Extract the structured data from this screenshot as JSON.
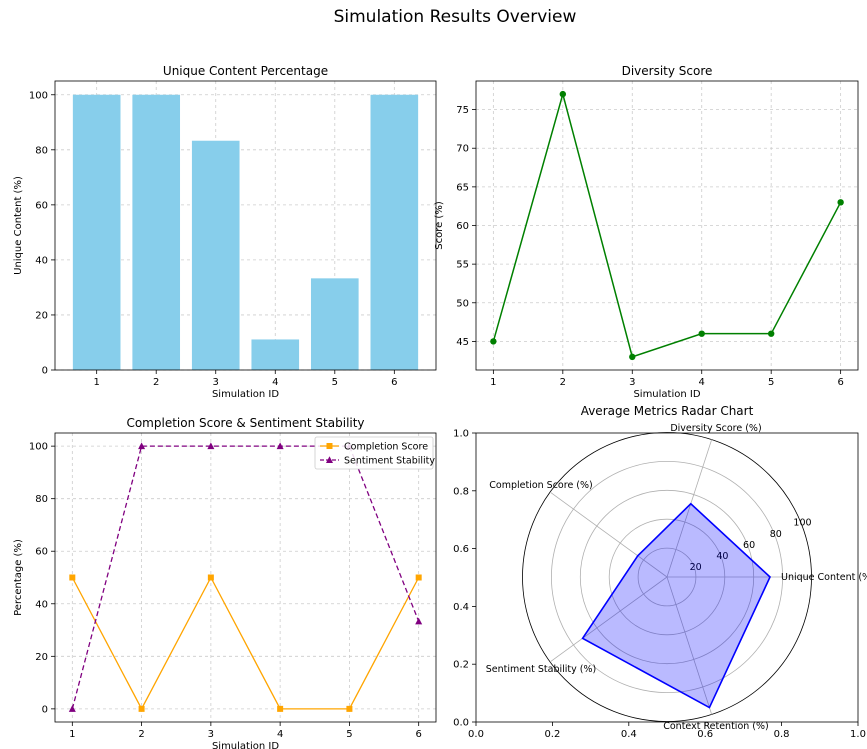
{
  "figure_title": "Simulation Results Overview",
  "chart_data": [
    {
      "type": "bar",
      "title": "Unique Content Percentage",
      "xlabel": "Simulation ID",
      "ylabel": "Unique Content (%)",
      "categories": [
        "1",
        "2",
        "3",
        "4",
        "5",
        "6"
      ],
      "values": [
        100,
        100,
        83.3,
        11.1,
        33.3,
        100
      ],
      "ylim": [
        0,
        105
      ],
      "yticks": [
        "0",
        "20",
        "40",
        "60",
        "80",
        "100"
      ],
      "color": "#87ceeb",
      "grid": true
    },
    {
      "type": "line",
      "title": "Diversity Score",
      "xlabel": "Simulation ID",
      "ylabel": "Score (%)",
      "x": [
        1,
        2,
        3,
        4,
        5,
        6
      ],
      "values": [
        45,
        77,
        43,
        46,
        46,
        63
      ],
      "xlim": [
        0.75,
        6.25
      ],
      "ylim": [
        41.3,
        78.7
      ],
      "xticks": [
        "1",
        "2",
        "3",
        "4",
        "5",
        "6"
      ],
      "yticks": [
        "45",
        "50",
        "55",
        "60",
        "65",
        "70",
        "75"
      ],
      "color": "#008000",
      "marker": "circle",
      "grid": true
    },
    {
      "type": "line",
      "title": "Completion Score & Sentiment Stability",
      "xlabel": "Simulation ID",
      "ylabel": "Percentage (%)",
      "x": [
        1,
        2,
        3,
        4,
        5,
        6
      ],
      "xlim": [
        0.75,
        6.25
      ],
      "ylim": [
        -5,
        105
      ],
      "xticks": [
        "1",
        "2",
        "3",
        "4",
        "5",
        "6"
      ],
      "yticks": [
        "0",
        "20",
        "40",
        "60",
        "80",
        "100"
      ],
      "legend_position": "top-right",
      "grid": true,
      "series": [
        {
          "name": "Completion Score",
          "values": [
            50,
            0,
            50,
            0,
            0,
            50
          ],
          "color": "#ffa500",
          "marker": "square",
          "dash": "solid"
        },
        {
          "name": "Sentiment Stability",
          "values": [
            0,
            100,
            100,
            100,
            100,
            33.3
          ],
          "color": "#800080",
          "marker": "triangle",
          "dash": "dashed"
        }
      ]
    },
    {
      "type": "radar",
      "title": "Average Metrics Radar Chart",
      "categories": [
        "Unique Content (%)",
        "Diversity Score (%)",
        "Completion Score (%)",
        "Sentiment Stability (%)",
        "Context Retention (%)"
      ],
      "values": [
        71.3,
        53.3,
        25,
        72.2,
        95
      ],
      "rmax": 100,
      "rticks": [
        "20",
        "40",
        "60",
        "80",
        "100"
      ],
      "frame_xticks": [
        "0.0",
        "0.2",
        "0.4",
        "0.6",
        "0.8",
        "1.0"
      ],
      "frame_yticks": [
        "0.0",
        "0.2",
        "0.4",
        "0.6",
        "0.8",
        "1.0"
      ],
      "line_color": "#0000ff",
      "fill_color": "#0000ff",
      "fill_opacity": 0.27
    }
  ]
}
